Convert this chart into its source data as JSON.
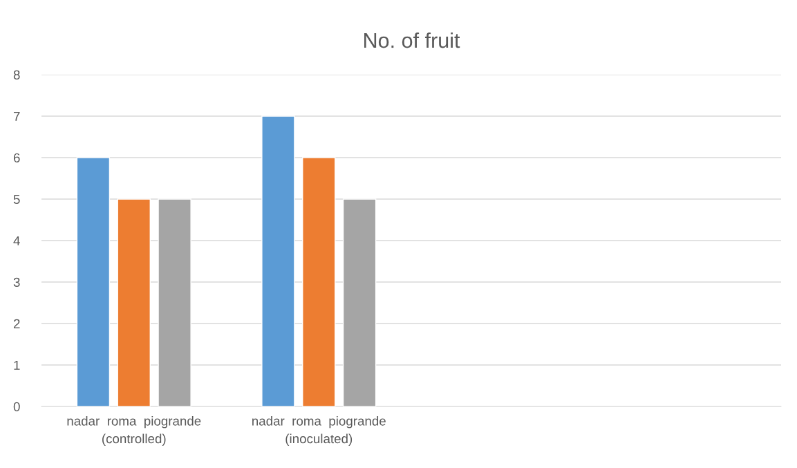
{
  "chart_data": {
    "type": "bar",
    "title": "No. of fruit",
    "categories": [
      "nadar  roma  piogrande\n(controlled)",
      "nadar  roma  piogrande\n(inoculated)",
      null,
      null
    ],
    "series": [
      {
        "color": "#5b9bd5",
        "values": [
          6,
          7,
          null,
          null
        ]
      },
      {
        "color": "#ed7d31",
        "values": [
          5,
          6,
          null,
          null
        ]
      },
      {
        "color": "#a5a5a5",
        "values": [
          5,
          5,
          null,
          null
        ]
      }
    ],
    "ylim": [
      0,
      8
    ],
    "yticks": [
      0,
      1,
      2,
      3,
      4,
      5,
      6,
      7,
      8
    ],
    "grid": "y",
    "legend": false
  }
}
